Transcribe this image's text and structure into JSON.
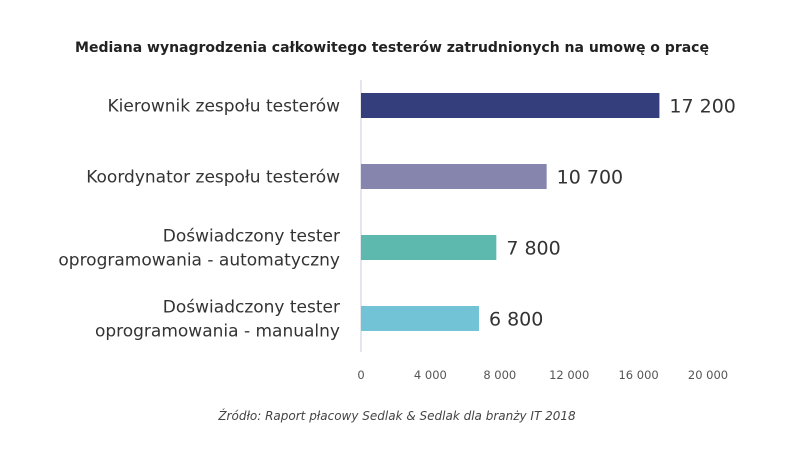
{
  "chart_data": {
    "type": "bar",
    "orientation": "horizontal",
    "title": "Mediana wynagrodzenia całkowitego testerów zatrudnionych na umowę o pracę",
    "categories": [
      [
        "Kierownik zespołu testerów"
      ],
      [
        "Koordynator zespołu testerów"
      ],
      [
        "Doświadczony tester",
        "oprogramowania - automatyczny"
      ],
      [
        "Doświadczony tester",
        "oprogramowania - manualny"
      ]
    ],
    "values": [
      17200,
      10700,
      7800,
      6800
    ],
    "data_labels": [
      "17 200",
      "10 700",
      "7 800",
      "6 800"
    ],
    "colors": [
      "#343e7c",
      "#8585ad",
      "#5db8ad",
      "#72c3d6"
    ],
    "xlim": [
      0,
      20000
    ],
    "xticks": [
      0,
      4000,
      8000,
      12000,
      16000,
      20000
    ],
    "xtick_labels": [
      "0",
      "4 000",
      "8 000",
      "12 000",
      "16 000",
      "20 000"
    ],
    "grid": false,
    "source": "Źródło: Raport płacowy Sedlak & Sedlak dla branży IT 2018"
  }
}
